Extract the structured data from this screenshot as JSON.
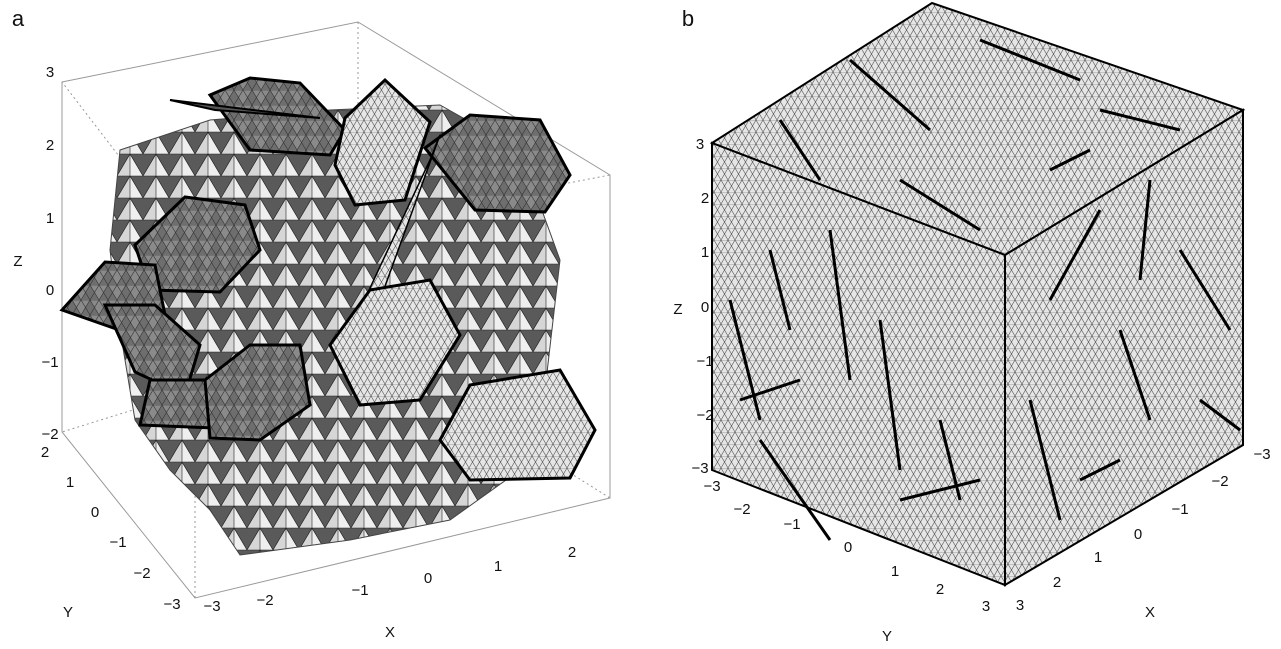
{
  "panels": [
    {
      "label": "a",
      "x_label": "X",
      "y_label": "Y",
      "z_label": "Z",
      "x_ticks": [
        "−3",
        "−2",
        "−1",
        "0",
        "1",
        "2"
      ],
      "y_ticks": [
        "2",
        "1",
        "0",
        "−1",
        "−2",
        "−3"
      ],
      "z_ticks": [
        "3",
        "2",
        "1",
        "0",
        "−1",
        "−2"
      ]
    },
    {
      "label": "b",
      "x_label": "X",
      "y_label": "Y",
      "z_label": "Z",
      "x_ticks": [
        "−3",
        "−2",
        "−1",
        "0",
        "1",
        "2",
        "3"
      ],
      "y_ticks": [
        "−3",
        "−2",
        "−1",
        "0",
        "1",
        "2",
        "3"
      ],
      "z_ticks": [
        "3",
        "2",
        "1",
        "0",
        "−1",
        "−2",
        "−3"
      ]
    }
  ]
}
